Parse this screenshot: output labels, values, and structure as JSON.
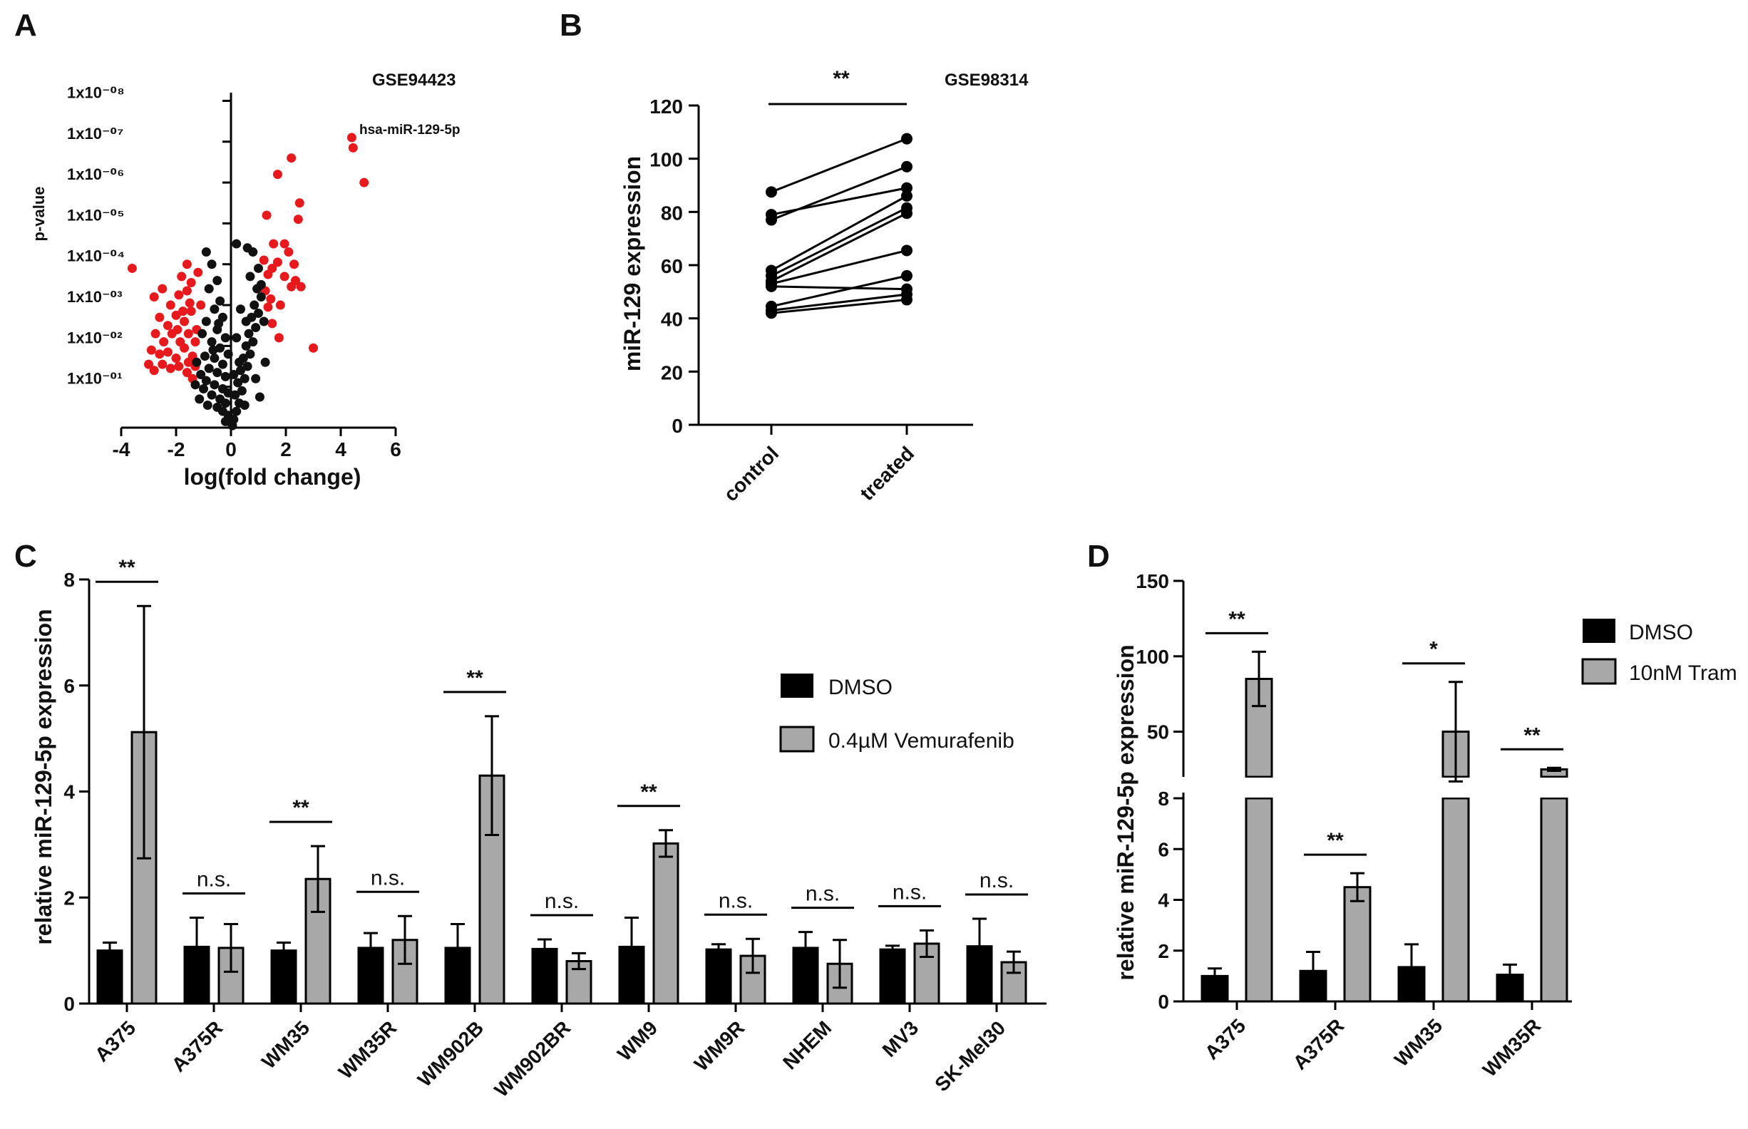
{
  "chart_data": [
    {
      "panel": "A",
      "type": "scatter",
      "title": "GSE94423",
      "xlabel": "log(fold change)",
      "ylabel": "p-value",
      "xlim": [
        -4,
        6
      ],
      "xticks": [
        "-4",
        "-2",
        "0",
        "2",
        "4",
        "6"
      ],
      "yticks": [
        {
          "label": "1x10⁻⁰¹",
          "value": 1
        },
        {
          "label": "1x10⁻⁰²",
          "value": 2
        },
        {
          "label": "1x10⁻⁰³",
          "value": 3
        },
        {
          "label": "1x10⁻⁰⁴",
          "value": 4
        },
        {
          "label": "1x10⁻⁰⁵",
          "value": 5
        },
        {
          "label": "1x10⁻⁰⁶",
          "value": 6
        },
        {
          "label": "1x10⁻⁰⁷",
          "value": 7
        },
        {
          "label": "1x10⁻⁰⁸",
          "value": 8
        }
      ],
      "annotation": {
        "text": "hsa-miR-129-5p",
        "x": 4.4,
        "y": 7.1
      },
      "series": [
        {
          "name": "significant",
          "color": "#e8191c",
          "points": [
            [
              4.4,
              7.1
            ],
            [
              4.45,
              6.85
            ],
            [
              4.85,
              6.0
            ],
            [
              2.2,
              6.6
            ],
            [
              1.7,
              6.2
            ],
            [
              2.5,
              5.5
            ],
            [
              2.45,
              5.1
            ],
            [
              1.3,
              5.2
            ],
            [
              1.55,
              4.5
            ],
            [
              1.95,
              4.5
            ],
            [
              1.5,
              3.9
            ],
            [
              1.2,
              4.1
            ],
            [
              1.7,
              4.05
            ],
            [
              2.1,
              4.3
            ],
            [
              2.3,
              4.0
            ],
            [
              1.95,
              3.7
            ],
            [
              2.35,
              3.6
            ],
            [
              2.2,
              3.45
            ],
            [
              2.55,
              3.45
            ],
            [
              1.35,
              3.75
            ],
            [
              1.25,
              3.35
            ],
            [
              1.45,
              3.15
            ],
            [
              1.35,
              2.95
            ],
            [
              1.8,
              3.0
            ],
            [
              1.5,
              2.55
            ],
            [
              1.75,
              2.2
            ],
            [
              3.0,
              1.95
            ],
            [
              -3.6,
              3.9
            ],
            [
              -2.8,
              3.2
            ],
            [
              -2.5,
              3.4
            ],
            [
              -2.2,
              3.0
            ],
            [
              -1.9,
              3.25
            ],
            [
              -1.6,
              3.35
            ],
            [
              -2.6,
              2.7
            ],
            [
              -2.3,
              2.5
            ],
            [
              -2.0,
              2.75
            ],
            [
              -1.7,
              2.6
            ],
            [
              -1.45,
              2.85
            ],
            [
              -2.75,
              2.3
            ],
            [
              -2.45,
              2.1
            ],
            [
              -2.15,
              2.3
            ],
            [
              -1.85,
              2.1
            ],
            [
              -1.55,
              2.3
            ],
            [
              -2.9,
              1.9
            ],
            [
              -2.6,
              1.8
            ],
            [
              -2.3,
              1.85
            ],
            [
              -2.0,
              1.7
            ],
            [
              -1.7,
              1.95
            ],
            [
              -1.4,
              1.75
            ],
            [
              -2.5,
              1.55
            ],
            [
              -2.2,
              1.45
            ],
            [
              -1.9,
              1.5
            ],
            [
              -1.6,
              1.35
            ],
            [
              -1.3,
              1.5
            ],
            [
              -3.0,
              1.55
            ],
            [
              -2.8,
              1.4
            ],
            [
              -1.75,
              2.85
            ],
            [
              -1.5,
              3.05
            ],
            [
              -1.25,
              2.4
            ],
            [
              -1.4,
              1.2
            ],
            [
              -1.95,
              2.4
            ],
            [
              -1.1,
              3.0
            ],
            [
              -1.6,
              4.0
            ],
            [
              -1.2,
              3.8
            ],
            [
              -1.45,
              3.55
            ],
            [
              -1.8,
              3.7
            ],
            [
              -1.3,
              2.1
            ],
            [
              -1.55,
              1.6
            ]
          ]
        },
        {
          "name": "not significant",
          "color": "#111111",
          "points": [
            [
              -0.9,
              4.3
            ],
            [
              -0.7,
              4.0
            ],
            [
              -0.5,
              3.6
            ],
            [
              -0.8,
              3.4
            ],
            [
              -0.4,
              3.1
            ],
            [
              -0.6,
              2.9
            ],
            [
              -0.3,
              2.7
            ],
            [
              -0.9,
              2.6
            ],
            [
              -0.5,
              2.4
            ],
            [
              -0.2,
              2.2
            ],
            [
              -0.7,
              2.1
            ],
            [
              -0.4,
              1.95
            ],
            [
              -0.1,
              1.8
            ],
            [
              -0.6,
              1.7
            ],
            [
              -0.3,
              1.55
            ],
            [
              -0.8,
              1.45
            ],
            [
              -0.5,
              1.35
            ],
            [
              -0.2,
              1.25
            ],
            [
              -0.9,
              1.15
            ],
            [
              -0.6,
              1.05
            ],
            [
              -0.3,
              0.95
            ],
            [
              -0.1,
              0.85
            ],
            [
              -0.7,
              0.8
            ],
            [
              -0.4,
              0.7
            ],
            [
              -0.2,
              0.6
            ],
            [
              -0.5,
              0.5
            ],
            [
              -0.3,
              0.4
            ],
            [
              -0.1,
              0.3
            ],
            [
              -0.2,
              0.15
            ],
            [
              0.05,
              0.05
            ],
            [
              -0.95,
              1.75
            ],
            [
              -1.05,
              2.3
            ],
            [
              -1.1,
              1.3
            ],
            [
              -1.0,
              0.95
            ],
            [
              -1.15,
              0.7
            ],
            [
              -0.85,
              0.55
            ],
            [
              -1.25,
              1.6
            ],
            [
              -1.3,
              1.05
            ],
            [
              -0.65,
              1.9
            ],
            [
              -0.45,
              2.55
            ],
            [
              0.1,
              0.2
            ],
            [
              0.2,
              0.4
            ],
            [
              0.3,
              0.6
            ],
            [
              0.15,
              0.8
            ],
            [
              0.4,
              0.9
            ],
            [
              0.25,
              1.1
            ],
            [
              0.5,
              1.2
            ],
            [
              0.35,
              1.4
            ],
            [
              0.6,
              1.5
            ],
            [
              0.45,
              1.7
            ],
            [
              0.7,
              1.8
            ],
            [
              0.55,
              2.0
            ],
            [
              0.8,
              2.1
            ],
            [
              0.65,
              2.3
            ],
            [
              0.9,
              2.45
            ],
            [
              0.75,
              2.7
            ],
            [
              1.0,
              2.8
            ],
            [
              0.85,
              3.0
            ],
            [
              1.1,
              3.2
            ],
            [
              0.95,
              3.4
            ],
            [
              0.7,
              3.7
            ],
            [
              1.0,
              3.9
            ],
            [
              0.8,
              4.3
            ],
            [
              0.6,
              4.4
            ],
            [
              0.2,
              4.5
            ],
            [
              1.1,
              3.5
            ],
            [
              0.3,
              1.6
            ],
            [
              0.2,
              2.2
            ],
            [
              0.55,
              2.6
            ],
            [
              1.2,
              2.6
            ],
            [
              0.9,
              1.2
            ],
            [
              1.25,
              1.6
            ],
            [
              1.05,
              0.75
            ],
            [
              0.5,
              0.55
            ],
            [
              0.35,
              2.9
            ],
            [
              0.1,
              1.3
            ]
          ]
        }
      ]
    },
    {
      "panel": "B",
      "type": "line",
      "title": "GSE98314",
      "categories": [
        "control",
        "treated"
      ],
      "ylabel": "miR-129 expression",
      "ylim": [
        0,
        120
      ],
      "yticks": [
        0,
        20,
        40,
        60,
        80,
        100,
        120
      ],
      "significance": "**",
      "pairs": [
        [
          87.5,
          107.5
        ],
        [
          79,
          89
        ],
        [
          77,
          97
        ],
        [
          58,
          86
        ],
        [
          56,
          81.5
        ],
        [
          54,
          79.5
        ],
        [
          53,
          65.5
        ],
        [
          52,
          51
        ],
        [
          44.5,
          56
        ],
        [
          43,
          49
        ],
        [
          42,
          47
        ]
      ]
    },
    {
      "panel": "C",
      "type": "bar",
      "categories": [
        "A375",
        "A375R",
        "WM35",
        "WM35R",
        "WM902B",
        "WM902BR",
        "WM9",
        "WM9R",
        "NHEM",
        "MV3",
        "SK-Mel30"
      ],
      "ylabel": "relative miR-129-5p expression",
      "ylim": [
        0,
        8
      ],
      "yticks": [
        0,
        2,
        4,
        6,
        8
      ],
      "series": [
        {
          "name": "DMSO",
          "color": "#000000",
          "values": [
            1.0,
            1.07,
            1.0,
            1.05,
            1.05,
            1.03,
            1.07,
            1.02,
            1.05,
            1.02,
            1.08
          ],
          "errors": [
            0.15,
            0.55,
            0.15,
            0.28,
            0.45,
            0.18,
            0.55,
            0.1,
            0.3,
            0.07,
            0.52
          ]
        },
        {
          "name": "0.4µM Vemurafenib",
          "color": "#a8a8a8",
          "values": [
            5.12,
            1.05,
            2.35,
            1.2,
            4.3,
            0.8,
            3.02,
            0.9,
            0.75,
            1.13,
            0.78
          ],
          "errors": [
            2.38,
            0.45,
            0.62,
            0.45,
            1.12,
            0.15,
            0.25,
            0.32,
            0.45,
            0.25,
            0.2
          ]
        }
      ],
      "significance": [
        "**",
        "n.s.",
        "**",
        "n.s.",
        "**",
        "n.s.",
        "**",
        "n.s.",
        "n.s.",
        "n.s.",
        "n.s."
      ]
    },
    {
      "panel": "D",
      "type": "bar",
      "categories": [
        "A375",
        "A375R",
        "WM35",
        "WM35R"
      ],
      "ylabel": "relative miR-129-5p expression",
      "ylim": [
        0,
        150
      ],
      "yaxis_break": [
        8,
        20
      ],
      "yticks": [
        0,
        2,
        4,
        6,
        8,
        50,
        100,
        150
      ],
      "series": [
        {
          "name": "DMSO",
          "color": "#000000",
          "values": [
            1.0,
            1.2,
            1.35,
            1.05
          ],
          "errors": [
            0.3,
            0.75,
            0.9,
            0.4
          ]
        },
        {
          "name": "10nM Tram",
          "color": "#a8a8a8",
          "values": [
            85,
            4.5,
            50,
            25
          ],
          "errors": [
            18,
            0.55,
            33,
            1
          ]
        }
      ],
      "significance": [
        "**",
        "**",
        "*",
        "**"
      ]
    }
  ]
}
